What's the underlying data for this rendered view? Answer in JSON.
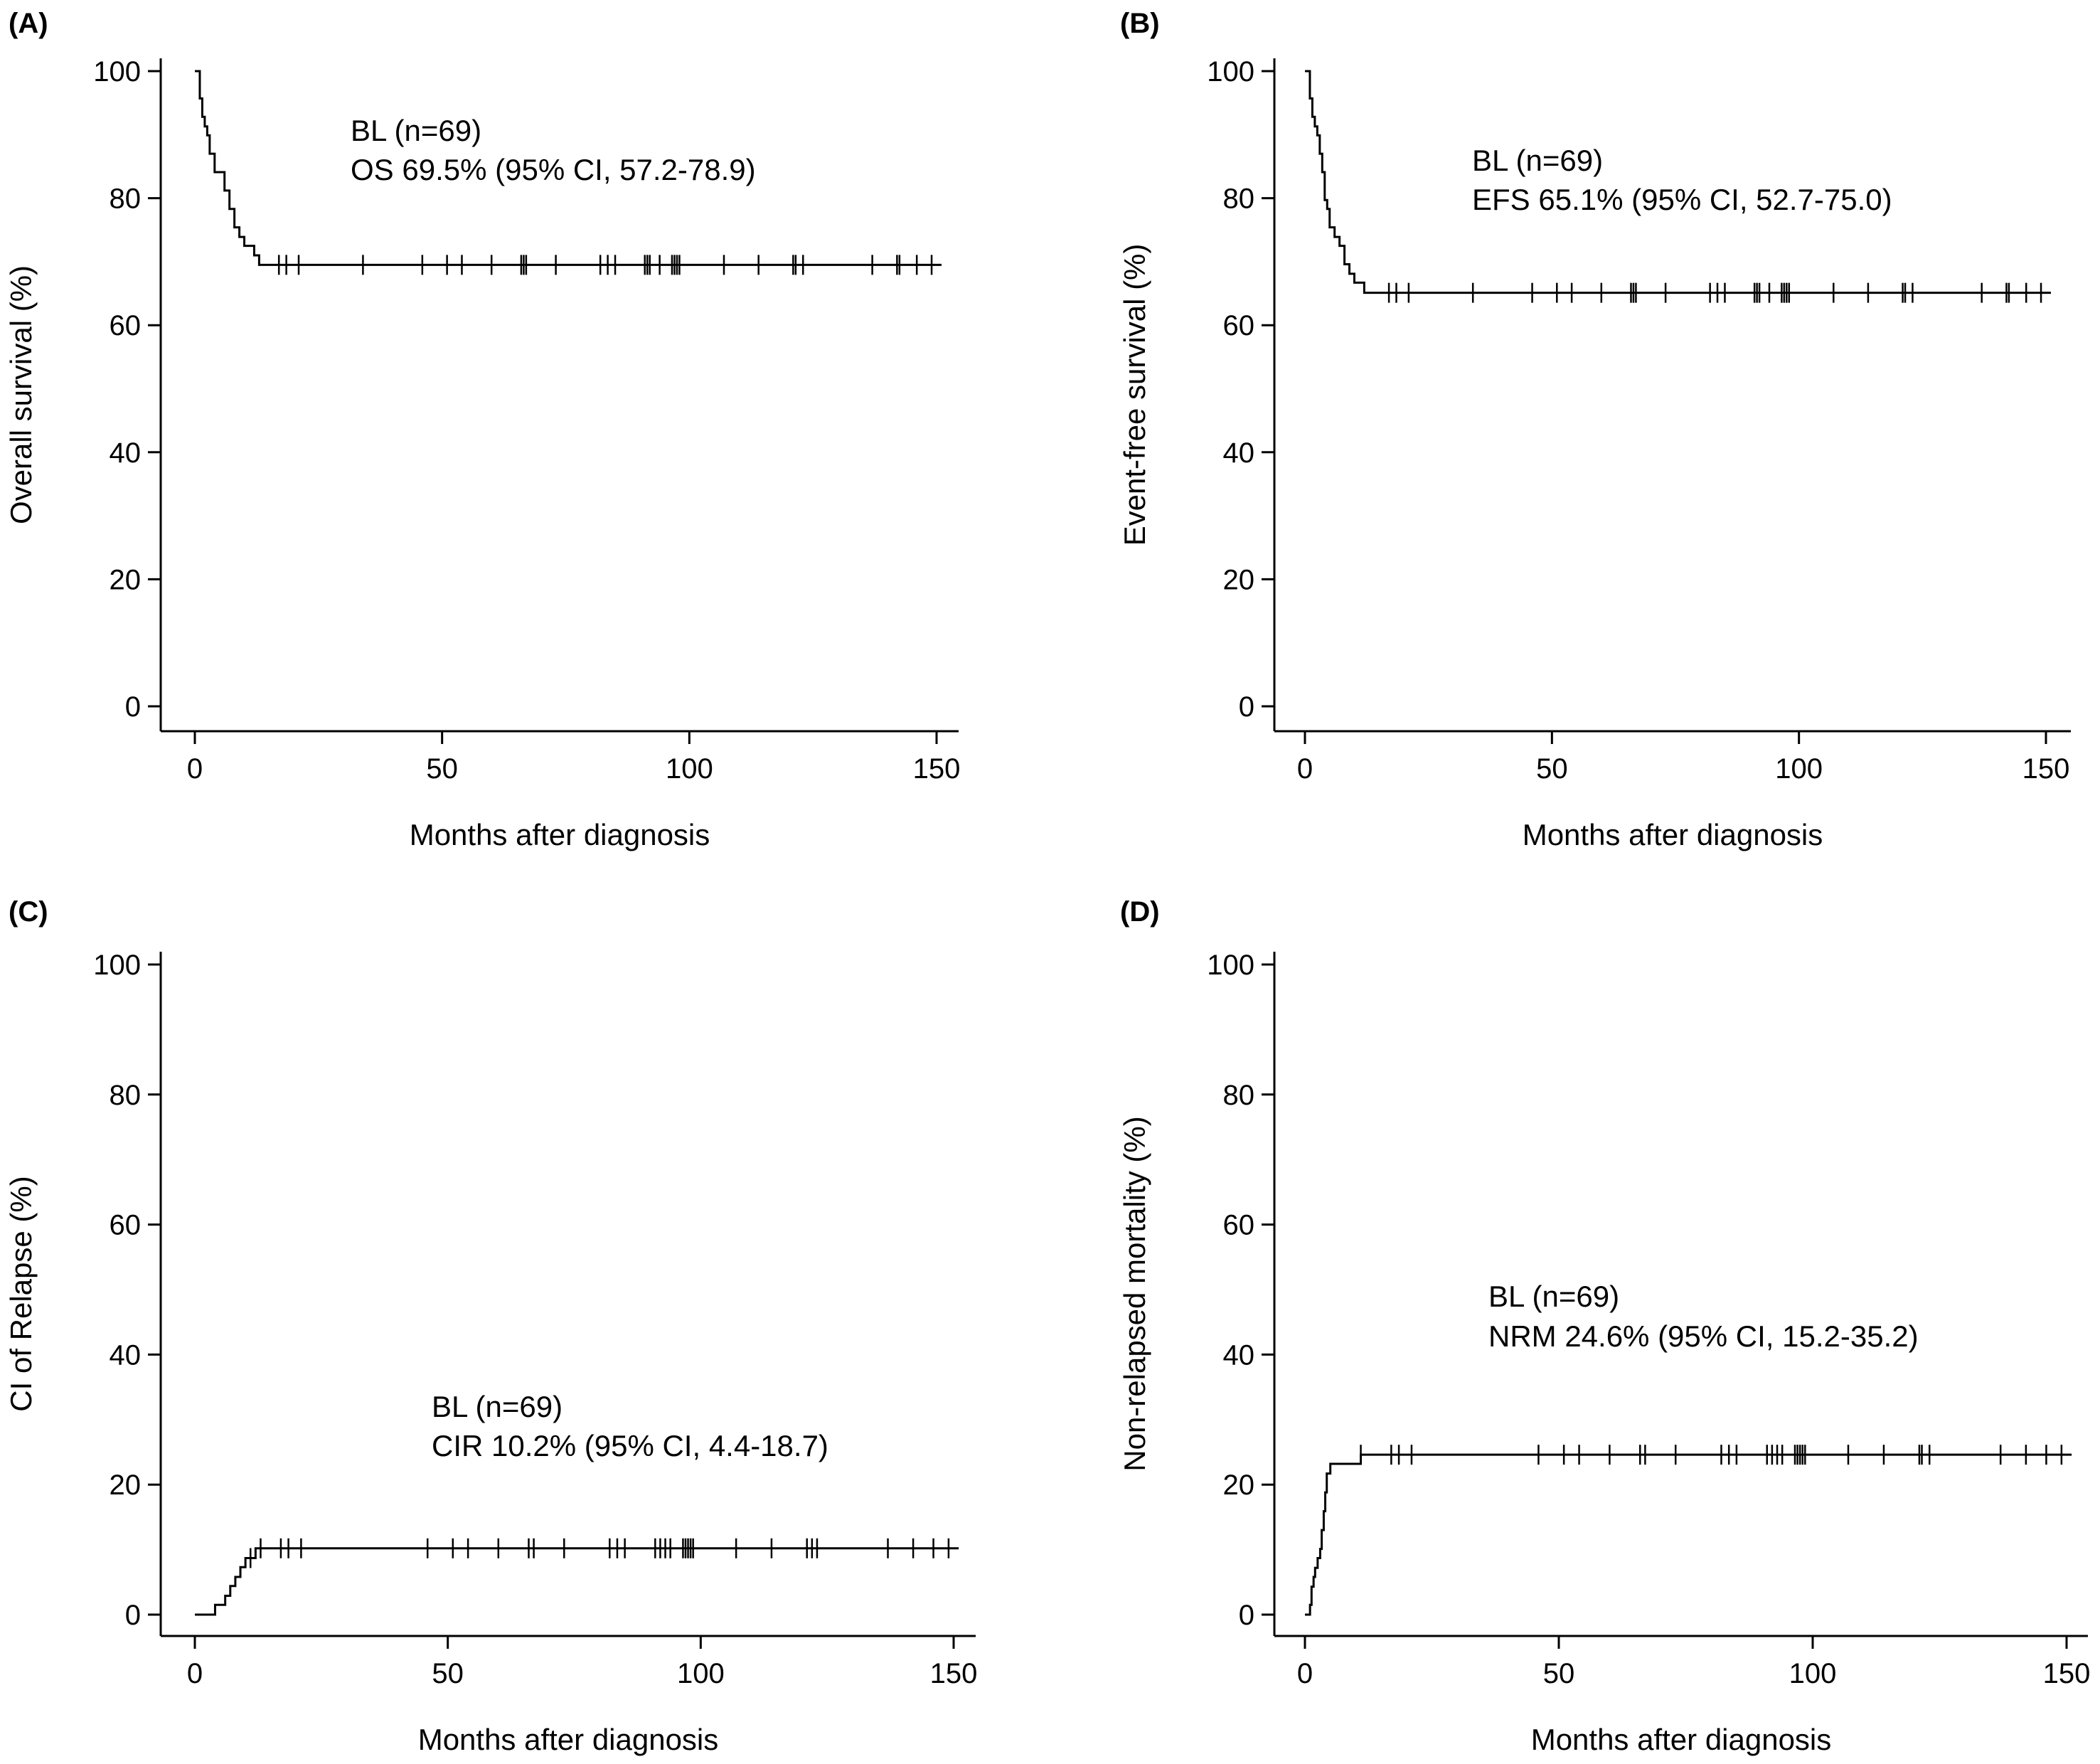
{
  "chart_data": [
    {
      "type": "line",
      "panel": "(A)",
      "title": "",
      "xlabel": "Months after diagnosis",
      "ylabel": "Overall survival (%)",
      "xlim": [
        0,
        150
      ],
      "ylim": [
        0,
        100
      ],
      "xticks": [
        0,
        50,
        100,
        150
      ],
      "yticks": [
        0,
        20,
        40,
        60,
        80,
        100
      ],
      "annotation": [
        "BL (n=69)",
        "OS 69.5% (95% CI, 57.2-78.9)"
      ],
      "series": [
        {
          "name": "BL",
          "steps": [
            [
              0,
              100
            ],
            [
              1,
              95.7
            ],
            [
              1.5,
              92.8
            ],
            [
              2,
              91.3
            ],
            [
              2.5,
              89.9
            ],
            [
              3,
              87
            ],
            [
              4,
              84.1
            ],
            [
              6,
              81.2
            ],
            [
              7,
              78.3
            ],
            [
              8,
              75.4
            ],
            [
              9,
              73.9
            ],
            [
              10,
              72.5
            ],
            [
              12,
              71
            ],
            [
              13,
              69.5
            ],
            [
              151,
              69.5
            ]
          ],
          "censored": [
            17,
            18.5,
            21,
            34,
            46,
            51,
            54,
            60,
            66,
            66.5,
            67,
            73,
            82,
            83.5,
            85,
            91,
            91.5,
            92,
            94,
            96.5,
            97,
            97.5,
            98,
            107,
            114,
            121,
            121.5,
            123,
            137,
            142,
            142.5,
            146,
            149
          ]
        }
      ]
    },
    {
      "type": "line",
      "panel": "(B)",
      "title": "",
      "xlabel": "Months after diagnosis",
      "ylabel": "Event-free survival (%)",
      "xlim": [
        0,
        150
      ],
      "ylim": [
        0,
        100
      ],
      "xticks": [
        0,
        50,
        100,
        150
      ],
      "yticks": [
        0,
        20,
        40,
        60,
        80,
        100
      ],
      "annotation": [
        "BL (n=69)",
        "EFS 65.1% (95% CI, 52.7-75.0)"
      ],
      "series": [
        {
          "name": "BL",
          "steps": [
            [
              0,
              100
            ],
            [
              1,
              95.7
            ],
            [
              1.5,
              92.8
            ],
            [
              2,
              91.3
            ],
            [
              2.5,
              89.9
            ],
            [
              3,
              87
            ],
            [
              3.5,
              84.1
            ],
            [
              4,
              79.7
            ],
            [
              4.5,
              78.3
            ],
            [
              5,
              75.4
            ],
            [
              6,
              73.9
            ],
            [
              7,
              72.5
            ],
            [
              8,
              69.6
            ],
            [
              9,
              68.1
            ],
            [
              10,
              66.7
            ],
            [
              12,
              65.1
            ],
            [
              151,
              65.1
            ]
          ],
          "censored": [
            17,
            18.5,
            21,
            34,
            46,
            51,
            54,
            60,
            66,
            66.5,
            67,
            73,
            82,
            83.5,
            85,
            91,
            91.5,
            92,
            94,
            96.5,
            97,
            97.5,
            98,
            107,
            114,
            121,
            121.5,
            123,
            137,
            142,
            142.5,
            146,
            149
          ]
        }
      ]
    },
    {
      "type": "line",
      "panel": "(C)",
      "title": "",
      "xlabel": "Months after diagnosis",
      "ylabel": "CI of Relapse (%)",
      "xlim": [
        0,
        150
      ],
      "ylim": [
        0,
        100
      ],
      "xticks": [
        0,
        50,
        100,
        150
      ],
      "yticks": [
        0,
        20,
        40,
        60,
        80,
        100
      ],
      "annotation": [
        "BL (n=69)",
        "CIR 10.2% (95% CI, 4.4-18.7)"
      ],
      "series": [
        {
          "name": "BL",
          "steps": [
            [
              0,
              0
            ],
            [
              4,
              1.5
            ],
            [
              6,
              2.9
            ],
            [
              7,
              4.4
            ],
            [
              8,
              5.8
            ],
            [
              9,
              7.3
            ],
            [
              10,
              8.7
            ],
            [
              12,
              10.2
            ],
            [
              151,
              10.2
            ]
          ],
          "censored": [
            11,
            13,
            17,
            18.5,
            21,
            46,
            51,
            54,
            60,
            66,
            67,
            73,
            82,
            83.5,
            85,
            91,
            92,
            93,
            94,
            96.5,
            97,
            97.5,
            98,
            98.5,
            107,
            114,
            121,
            122,
            123,
            137,
            142,
            146,
            149
          ]
        }
      ]
    },
    {
      "type": "line",
      "panel": "(D)",
      "title": "",
      "xlabel": "Months after diagnosis",
      "ylabel": "Non-relapsed mortality (%)",
      "xlim": [
        0,
        150
      ],
      "ylim": [
        0,
        100
      ],
      "xticks": [
        0,
        50,
        100,
        150
      ],
      "yticks": [
        0,
        20,
        40,
        60,
        80,
        100
      ],
      "annotation": [
        "BL (n=69)",
        "NRM 24.6% (95% CI, 15.2-35.2)"
      ],
      "series": [
        {
          "name": "BL",
          "steps": [
            [
              0,
              0
            ],
            [
              1,
              1.5
            ],
            [
              1.3,
              4.3
            ],
            [
              1.7,
              5.8
            ],
            [
              2,
              7.2
            ],
            [
              2.5,
              8.7
            ],
            [
              3,
              10.1
            ],
            [
              3.3,
              13
            ],
            [
              3.7,
              15.9
            ],
            [
              4,
              18.8
            ],
            [
              4.3,
              21.7
            ],
            [
              5,
              23.2
            ],
            [
              11,
              24.6
            ],
            [
              151,
              24.6
            ]
          ],
          "censored": [
            11,
            17,
            18.5,
            21,
            46,
            51,
            54,
            60,
            66,
            67,
            73,
            82,
            83.5,
            85,
            91,
            92,
            93,
            94,
            96.5,
            97,
            97.5,
            98,
            98.5,
            107,
            114,
            121,
            121.5,
            123,
            137,
            142,
            146,
            149
          ]
        }
      ]
    }
  ]
}
